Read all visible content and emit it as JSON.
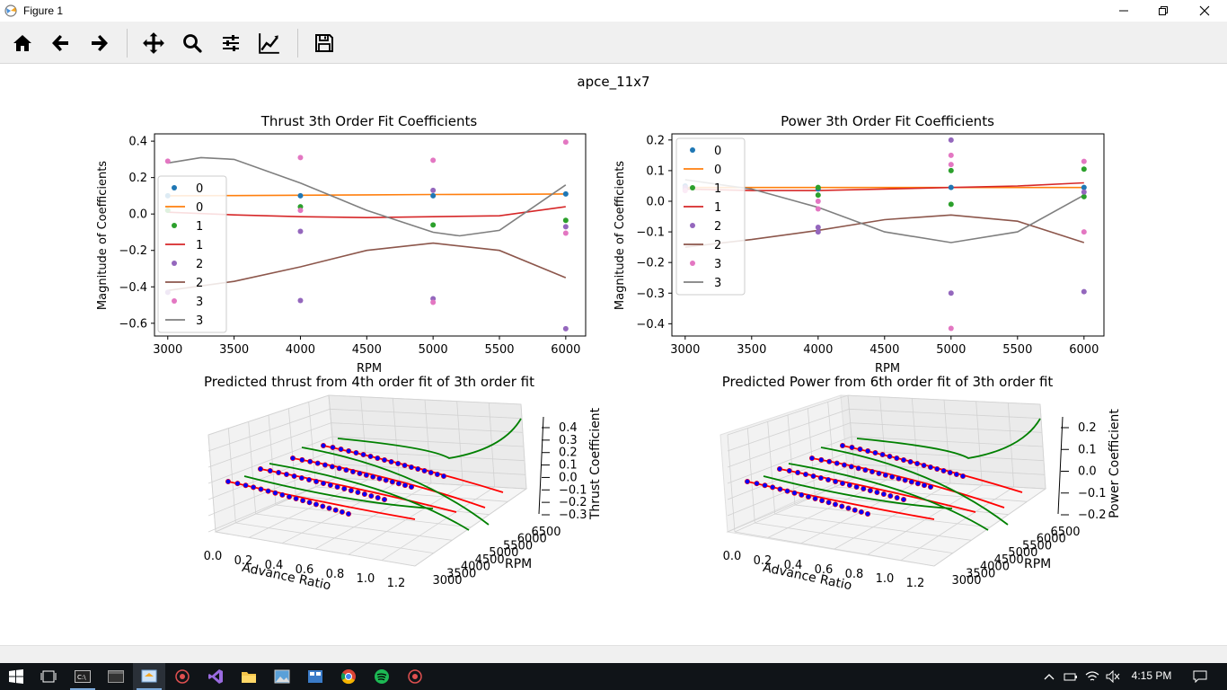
{
  "window": {
    "title": "Figure 1"
  },
  "toolbar": {
    "buttons": [
      {
        "name": "home-button",
        "icon": "home-icon"
      },
      {
        "name": "back-button",
        "icon": "arrow-left-icon"
      },
      {
        "name": "forward-button",
        "icon": "arrow-right-icon"
      },
      {
        "name": "pan-button",
        "icon": "move-icon"
      },
      {
        "name": "zoom-button",
        "icon": "magnifier-icon"
      },
      {
        "name": "subplots-button",
        "icon": "sliders-icon"
      },
      {
        "name": "edit-axes-button",
        "icon": "line-chart-icon"
      },
      {
        "name": "save-button",
        "icon": "floppy-disk-icon"
      }
    ]
  },
  "figure": {
    "suptitle": "apce_11x7"
  },
  "colors": {
    "c0": "#1f77b4",
    "c1": "#ff7f0e",
    "c2": "#2ca02c",
    "c3": "#d62728",
    "c4": "#9467bd",
    "c5": "#8c564b",
    "c6": "#e377c2",
    "c7": "#7f7f7f",
    "pred_red": "#ff0000",
    "pred_green": "#008000",
    "pred_blue": "#0000ff"
  },
  "chart_data": [
    {
      "type": "scatter",
      "title": "Thrust 3th Order Fit Coefficients",
      "xlabel": "RPM",
      "ylabel": "Magnitude of Coefficients",
      "xlim": [
        2900,
        6150
      ],
      "ylim": [
        -0.67,
        0.44
      ],
      "xticks": [
        "3000",
        "3500",
        "4000",
        "4500",
        "5000",
        "5500",
        "6000"
      ],
      "yticks": [
        "0.4",
        "0.2",
        "0.0",
        "−0.2",
        "−0.4",
        "−0.6"
      ],
      "ytick_values": [
        0.4,
        0.2,
        0.0,
        -0.2,
        -0.4,
        -0.6
      ],
      "legend": [
        "0",
        "0",
        "1",
        "1",
        "2",
        "2",
        "3",
        "3"
      ],
      "legend_position": "center-left",
      "points": [
        {
          "series": "0",
          "x": [
            3000,
            4000,
            5000,
            6000
          ],
          "y": [
            0.1,
            0.1,
            0.1,
            0.11
          ]
        },
        {
          "series": "1",
          "x": [
            3000,
            4000,
            5000,
            6000
          ],
          "y": [
            0.02,
            0.04,
            -0.06,
            -0.035
          ]
        },
        {
          "series": "2",
          "x": [
            3000,
            4000,
            5000,
            6000
          ],
          "y": [
            -0.43,
            -0.095,
            -0.465,
            -0.63
          ]
        },
        {
          "series": "2b",
          "x": [
            4000,
            5000,
            6000
          ],
          "y": [
            -0.475,
            0.13,
            -0.07
          ]
        },
        {
          "series": "3",
          "x": [
            3000,
            4000,
            5000,
            6000
          ],
          "y": [
            0.29,
            0.31,
            0.295,
            0.395
          ]
        },
        {
          "series": "3b",
          "x": [
            4000,
            5000,
            6000
          ],
          "y": [
            0.02,
            -0.485,
            -0.105
          ]
        }
      ],
      "fits": [
        {
          "series": "0",
          "x": [
            3000,
            3500,
            4000,
            4500,
            5000,
            5500,
            6000
          ],
          "y": [
            0.1,
            0.101,
            0.103,
            0.105,
            0.107,
            0.108,
            0.11
          ]
        },
        {
          "series": "1",
          "x": [
            3000,
            3500,
            4000,
            4500,
            5000,
            5500,
            6000
          ],
          "y": [
            0.01,
            -0.005,
            -0.015,
            -0.02,
            -0.015,
            -0.01,
            0.04
          ]
        },
        {
          "series": "2",
          "x": [
            3000,
            3500,
            4000,
            4500,
            5000,
            5500,
            6000
          ],
          "y": [
            -0.42,
            -0.37,
            -0.29,
            -0.2,
            -0.16,
            -0.2,
            -0.35
          ]
        },
        {
          "series": "3",
          "x": [
            3000,
            3250,
            3500,
            4000,
            4500,
            5000,
            5200,
            5500,
            6000
          ],
          "y": [
            0.28,
            0.31,
            0.3,
            0.17,
            0.02,
            -0.1,
            -0.12,
            -0.09,
            0.16
          ]
        }
      ]
    },
    {
      "type": "scatter",
      "title": "Power 3th Order Fit Coefficients",
      "xlabel": "RPM",
      "ylabel": "Magnitude of Coefficients",
      "xlim": [
        2900,
        6150
      ],
      "ylim": [
        -0.44,
        0.22
      ],
      "xticks": [
        "3000",
        "3500",
        "4000",
        "4500",
        "5000",
        "5500",
        "6000"
      ],
      "yticks": [
        "0.2",
        "0.1",
        "0.0",
        "−0.1",
        "−0.2",
        "−0.3",
        "−0.4"
      ],
      "ytick_values": [
        0.2,
        0.1,
        0.0,
        -0.1,
        -0.2,
        -0.3,
        -0.4
      ],
      "legend": [
        "0",
        "0",
        "1",
        "1",
        "2",
        "2",
        "3",
        "3"
      ],
      "legend_position": "upper-left",
      "points": [
        {
          "series": "0",
          "x": [
            3000,
            4000,
            5000,
            6000
          ],
          "y": [
            0.05,
            0.04,
            0.045,
            0.045
          ]
        },
        {
          "series": "1",
          "x": [
            3000,
            4000,
            5000,
            6000
          ],
          "y": [
            0.04,
            0.045,
            0.1,
            0.105
          ]
        },
        {
          "series": "1b",
          "x": [
            4000,
            5000,
            6000
          ],
          "y": [
            0.02,
            -0.01,
            0.015
          ]
        },
        {
          "series": "2",
          "x": [
            3000,
            4000,
            5000,
            6000
          ],
          "y": [
            0.045,
            -0.085,
            0.2,
            -0.295
          ]
        },
        {
          "series": "2b",
          "x": [
            4000,
            5000,
            6000
          ],
          "y": [
            -0.1,
            -0.3,
            0.03
          ]
        },
        {
          "series": "3",
          "x": [
            3000,
            4000,
            5000,
            6000
          ],
          "y": [
            0.035,
            0.0,
            0.15,
            0.13
          ]
        },
        {
          "series": "3b",
          "x": [
            4000,
            5000,
            6000
          ],
          "y": [
            -0.025,
            0.12,
            -0.1
          ]
        },
        {
          "series": "3c",
          "x": [
            5000
          ],
          "y": [
            -0.415
          ]
        }
      ],
      "fits": [
        {
          "series": "0",
          "x": [
            3000,
            4000,
            5000,
            6000
          ],
          "y": [
            0.045,
            0.045,
            0.045,
            0.045
          ]
        },
        {
          "series": "1",
          "x": [
            3000,
            3500,
            4000,
            4500,
            5000,
            5500,
            6000
          ],
          "y": [
            0.04,
            0.035,
            0.035,
            0.04,
            0.045,
            0.05,
            0.06
          ]
        },
        {
          "series": "2",
          "x": [
            3000,
            3500,
            4000,
            4500,
            5000,
            5500,
            6000
          ],
          "y": [
            -0.15,
            -0.125,
            -0.095,
            -0.06,
            -0.045,
            -0.065,
            -0.135
          ]
        },
        {
          "series": "3",
          "x": [
            3000,
            3500,
            4000,
            4500,
            5000,
            5500,
            6000
          ],
          "y": [
            0.07,
            0.04,
            -0.02,
            -0.1,
            -0.135,
            -0.1,
            0.02
          ]
        }
      ]
    },
    {
      "type": "scatter",
      "title": "Predicted thrust from 4th order fit of 3th order fit",
      "xlabel": "Advance Ratio",
      "ylabel": "RPM",
      "zlabel": "Thrust Coefficient",
      "xticks": [
        "0.0",
        "0.2",
        "0.4",
        "0.6",
        "0.8",
        "1.0",
        "1.2"
      ],
      "yticks": [
        "3000",
        "3500",
        "4000",
        "4500",
        "5000",
        "5500",
        "6000",
        "6500"
      ],
      "zticks": [
        "0.4",
        "0.3",
        "0.2",
        "0.1",
        "0.0",
        "−0.1",
        "−0.2",
        "−0.3"
      ]
    },
    {
      "type": "scatter",
      "title": "Predicted Power from 6th order fit of 3th order fit",
      "xlabel": "Advance Ratio",
      "ylabel": "RPM",
      "zlabel": "Power Coefficient",
      "xticks": [
        "0.0",
        "0.2",
        "0.4",
        "0.6",
        "0.8",
        "1.0",
        "1.2"
      ],
      "yticks": [
        "3000",
        "3500",
        "4000",
        "4500",
        "5000",
        "5500",
        "6000",
        "6500"
      ],
      "zticks": [
        "0.2",
        "0.1",
        "0.0",
        "−0.1",
        "−0.2"
      ]
    }
  ],
  "taskbar": {
    "time": "4:15 PM"
  }
}
